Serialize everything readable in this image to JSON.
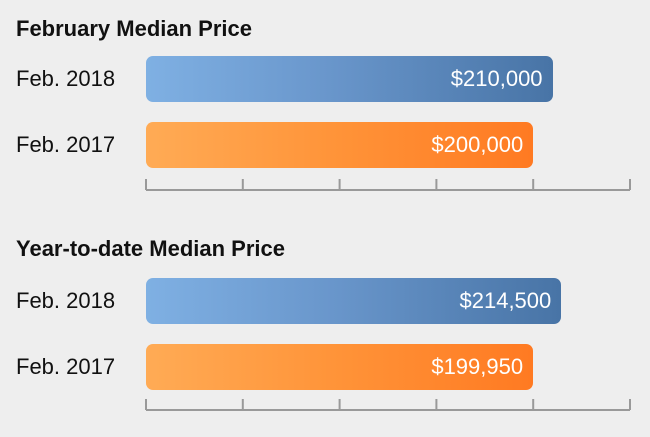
{
  "chart_data": [
    {
      "type": "bar",
      "orientation": "horizontal",
      "title": "February Median Price",
      "categories": [
        "Feb. 2018",
        "Feb. 2017"
      ],
      "values": [
        210000,
        200000
      ],
      "value_labels": [
        "$210,000",
        "$200,000"
      ],
      "colors": [
        "#4f7db3",
        "#ff8a30"
      ],
      "xlim": [
        0,
        250000
      ],
      "tick_count": 6,
      "grid": false,
      "legend": "none"
    },
    {
      "type": "bar",
      "orientation": "horizontal",
      "title": "Year-to-date Median Price",
      "categories": [
        "Feb. 2018",
        "Feb. 2017"
      ],
      "values": [
        214500,
        199950
      ],
      "value_labels": [
        "$214,500",
        "$199,950"
      ],
      "colors": [
        "#4f7db3",
        "#ff8a30"
      ],
      "xlim": [
        0,
        250000
      ],
      "tick_count": 6,
      "grid": false,
      "legend": "none"
    }
  ],
  "theme": {
    "background": "#eeeeee",
    "axis_color": "#999999"
  }
}
